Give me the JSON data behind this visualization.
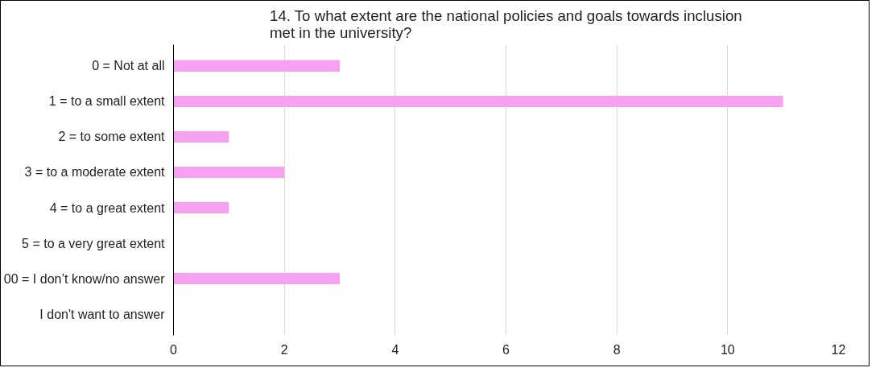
{
  "chart_data": {
    "type": "bar",
    "orientation": "horizontal",
    "title": "14. To what extent are the national policies and goals towards inclusion\nmet in the university?",
    "categories": [
      "0 = Not at all",
      "1 = to a small extent",
      "2 = to some extent",
      "3 = to a moderate extent",
      "4 = to a great extent",
      "5 = to a very great extent",
      "00 = I don’t know/no answer",
      "I don't want to answer"
    ],
    "values": [
      3,
      11,
      1,
      2,
      1,
      0,
      3,
      0
    ],
    "color": "#f7a1f0",
    "xlim": [
      0,
      12
    ],
    "xticks": [
      0,
      2,
      4,
      6,
      8,
      10,
      12
    ],
    "grid": "x"
  }
}
